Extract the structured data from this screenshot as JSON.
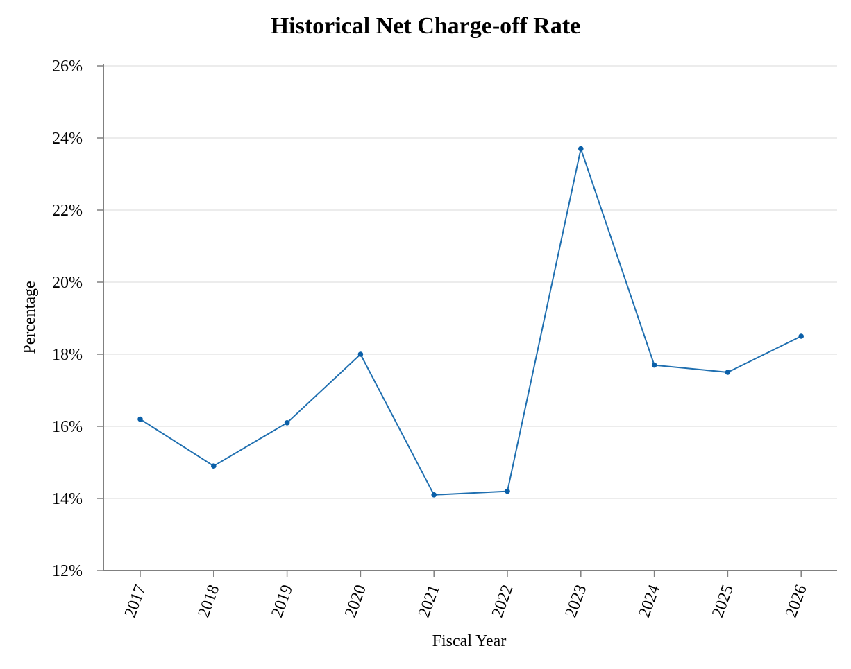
{
  "chart_data": {
    "type": "line",
    "title": "Historical Net Charge-off Rate",
    "xlabel": "Fiscal Year",
    "ylabel": "Percentage",
    "categories": [
      "2017",
      "2018",
      "2019",
      "2020",
      "2021",
      "2022",
      "2023",
      "2024",
      "2025",
      "2026"
    ],
    "series": [
      {
        "values": [
          16.2,
          14.9,
          16.1,
          18.0,
          14.1,
          14.2,
          23.7,
          17.7,
          17.5,
          18.5
        ]
      }
    ],
    "ylim": [
      12,
      26
    ],
    "yticks": [
      12,
      14,
      16,
      18,
      20,
      22,
      24,
      26
    ],
    "ytick_labels": [
      "12%",
      "14%",
      "16%",
      "18%",
      "20%",
      "22%",
      "24%",
      "26%"
    ],
    "grid": "horizontal",
    "colors": {
      "line": "#1f6fb0",
      "marker": "#0a5fa8",
      "grid": "#e6e6e6",
      "axis": "#808080"
    }
  }
}
